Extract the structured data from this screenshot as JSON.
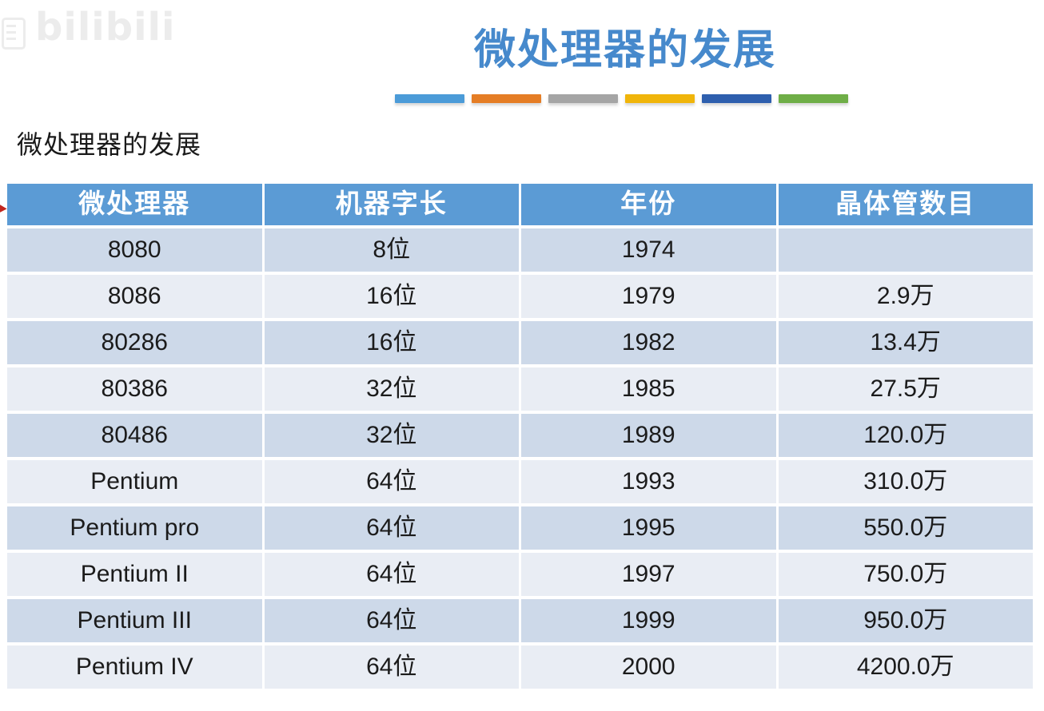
{
  "watermark": {
    "logo_text": "bilibili",
    "color": "#ececec"
  },
  "slide": {
    "title": "微处理器的发展",
    "title_color": "#4689cc",
    "subtitle": "微处理器的发展",
    "accent_bar_colors": [
      "#4b9bd8",
      "#e57d25",
      "#a5a5a5",
      "#f0b50a",
      "#2e5fae",
      "#6fae47"
    ]
  },
  "table": {
    "header_bg": "#5b9bd5",
    "row_colors": [
      "#cdd9e9",
      "#e9edf4"
    ],
    "headers": [
      "微处理器",
      "机器字长",
      "年份",
      "晶体管数目"
    ],
    "rows": [
      [
        "8080",
        "8位",
        "1974",
        ""
      ],
      [
        "8086",
        "16位",
        "1979",
        "2.9万"
      ],
      [
        "80286",
        "16位",
        "1982",
        "13.4万"
      ],
      [
        "80386",
        "32位",
        "1985",
        "27.5万"
      ],
      [
        "80486",
        "32位",
        "1989",
        "120.0万"
      ],
      [
        "Pentium",
        "64位",
        "1993",
        "310.0万"
      ],
      [
        "Pentium pro",
        "64位",
        "1995",
        "550.0万"
      ],
      [
        "Pentium II",
        "64位",
        "1997",
        "750.0万"
      ],
      [
        "Pentium III",
        "64位",
        "1999",
        "950.0万"
      ],
      [
        "Pentium IV",
        "64位",
        "2000",
        "4200.0万"
      ]
    ]
  }
}
